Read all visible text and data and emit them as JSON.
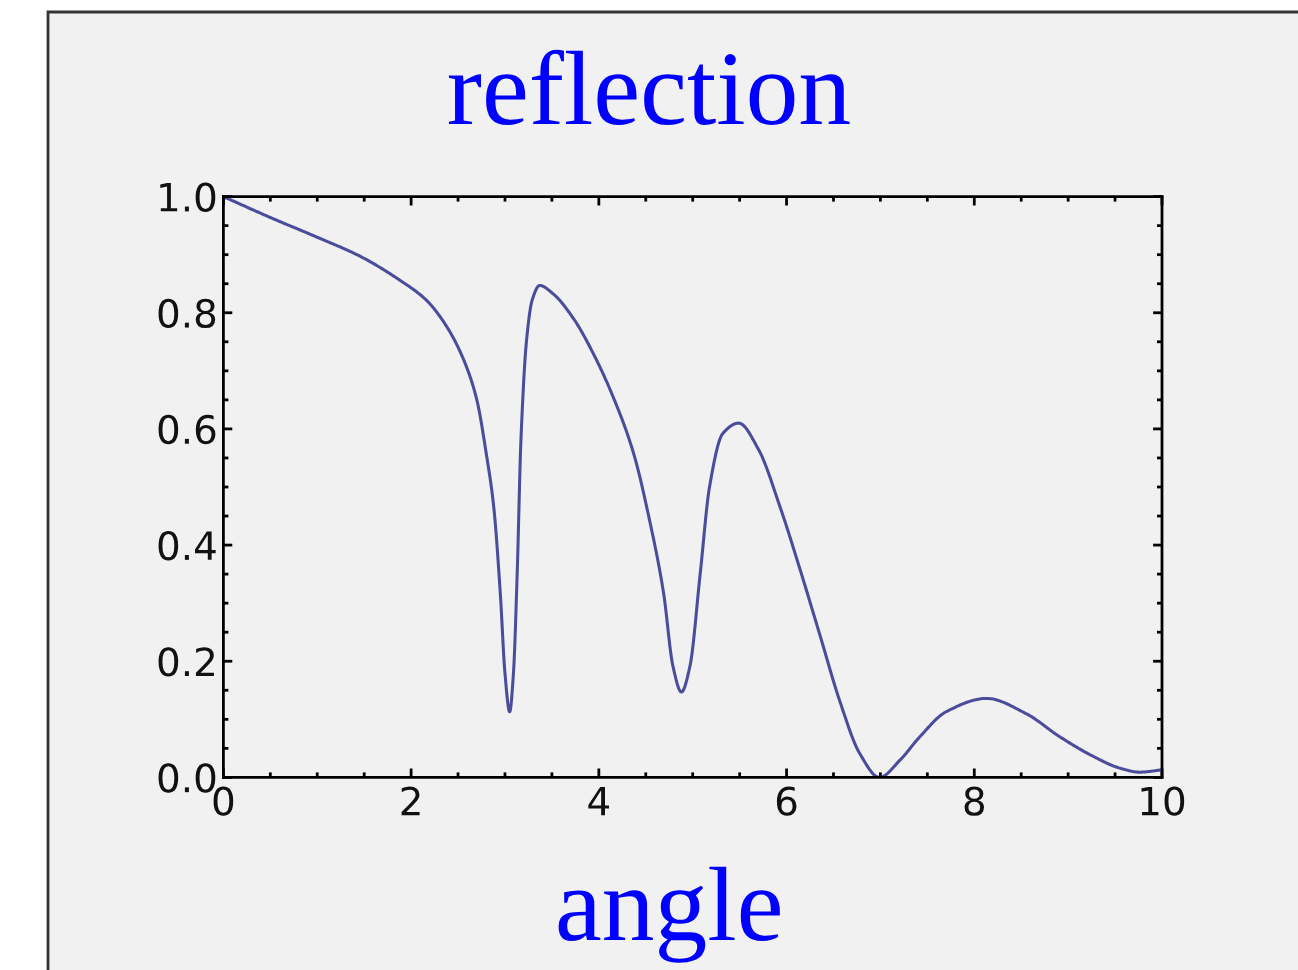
{
  "chart_data": {
    "type": "line",
    "title": "reflection",
    "xlabel": "angle",
    "x": [
      0,
      0.5,
      1.0,
      1.46,
      1.88,
      2.16,
      2.38,
      2.56,
      2.7,
      2.8,
      2.88,
      2.95,
      3.0,
      3.05,
      3.09,
      3.13,
      3.17,
      3.23,
      3.29,
      3.37,
      3.51,
      3.73,
      3.94,
      4.15,
      4.37,
      4.54,
      4.69,
      4.79,
      4.88,
      4.97,
      5.08,
      5.18,
      5.32,
      5.49,
      5.7,
      5.93,
      6.14,
      6.35,
      6.57,
      6.78,
      6.99,
      7.21,
      7.42,
      7.7,
      8.13,
      8.55,
      8.91,
      9.27,
      9.55,
      9.76,
      10.0
    ],
    "series": [
      {
        "color": "#4c4c9c",
        "values": [
          1.0,
          0.964,
          0.93,
          0.897,
          0.856,
          0.822,
          0.776,
          0.719,
          0.65,
          0.558,
          0.466,
          0.317,
          0.179,
          0.113,
          0.179,
          0.351,
          0.581,
          0.753,
          0.822,
          0.847,
          0.833,
          0.79,
          0.73,
          0.656,
          0.558,
          0.443,
          0.317,
          0.191,
          0.147,
          0.191,
          0.351,
          0.501,
          0.592,
          0.61,
          0.565,
          0.466,
          0.36,
          0.248,
          0.13,
          0.041,
          0.0,
          0.03,
          0.07,
          0.113,
          0.136,
          0.11,
          0.07,
          0.036,
          0.016,
          0.009,
          0.013
        ]
      }
    ],
    "xlim": [
      0,
      10
    ],
    "ylim": [
      0,
      1
    ],
    "xticks": [
      0,
      {
        "value": 0.5,
        "label": null
      },
      {
        "value": 1,
        "label": null
      },
      {
        "value": 1.5,
        "label": null
      },
      2,
      {
        "value": 2.5,
        "label": null
      },
      {
        "value": 3,
        "label": null
      },
      {
        "value": 3.5,
        "label": null
      },
      4,
      {
        "value": 4.5,
        "label": null
      },
      {
        "value": 5,
        "label": null
      },
      {
        "value": 5.5,
        "label": null
      },
      6,
      {
        "value": 6.5,
        "label": null
      },
      {
        "value": 7,
        "label": null
      },
      {
        "value": 7.5,
        "label": null
      },
      8,
      {
        "value": 8.5,
        "label": null
      },
      {
        "value": 9,
        "label": null
      },
      {
        "value": 9.5,
        "label": null
      },
      10
    ],
    "yticks": [
      {
        "value": 0,
        "label": "0.0"
      },
      {
        "value": 0.05,
        "label": null
      },
      {
        "value": 0.1,
        "label": null
      },
      {
        "value": 0.15,
        "label": null
      },
      0.2,
      {
        "value": 0.25,
        "label": null
      },
      {
        "value": 0.3,
        "label": null
      },
      {
        "value": 0.35,
        "label": null
      },
      0.4,
      {
        "value": 0.45,
        "label": null
      },
      {
        "value": 0.5,
        "label": null
      },
      {
        "value": 0.55,
        "label": null
      },
      0.6,
      {
        "value": 0.65,
        "label": null
      },
      {
        "value": 0.7,
        "label": null
      },
      {
        "value": 0.75,
        "label": null
      },
      0.8,
      {
        "value": 0.85,
        "label": null
      },
      {
        "value": 0.9,
        "label": null
      },
      {
        "value": 0.95,
        "label": null
      },
      {
        "value": 1,
        "label": "1.0"
      }
    ],
    "grid": false,
    "legend": false,
    "marker": "none",
    "line_style": "solid"
  }
}
